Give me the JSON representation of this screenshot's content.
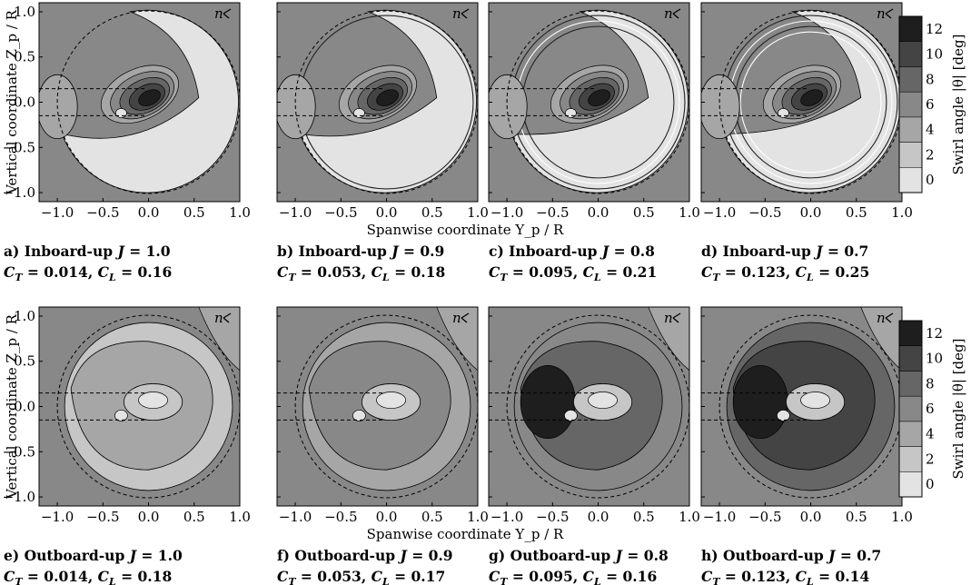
{
  "chart_data": {
    "type": "heatmap",
    "xlabel": "Spanwise coordinate Y_p / R",
    "ylabel": "Vertical coordinate Z_p / R",
    "xticks": [
      "−1.0",
      "−0.5",
      "0.0",
      "0.5",
      "1.0"
    ],
    "yticks": [
      "1.0",
      "0.5",
      "0.0",
      "−0.5",
      "−1.0"
    ],
    "xlim": [
      -1.2,
      1.0
    ],
    "ylim": [
      -1.1,
      1.1
    ],
    "corner_label": "n",
    "colorbar": {
      "label": "Swirl angle |θ| [deg]",
      "ticks": [
        "12",
        "10",
        "8",
        "6",
        "4",
        "2",
        "0"
      ],
      "levels": [
        0,
        2,
        4,
        6,
        8,
        10,
        12
      ],
      "colors": [
        "#e3e3e3",
        "#c6c6c6",
        "#a6a6a6",
        "#888888",
        "#666666",
        "#444444",
        "#1e1e1e"
      ]
    },
    "panels": [
      {
        "id": "a",
        "config": "Inboard-up",
        "J": "1.0",
        "CT": "0.014",
        "CL": "0.16",
        "background_level": 6
      },
      {
        "id": "b",
        "config": "Inboard-up",
        "J": "0.9",
        "CT": "0.053",
        "CL": "0.18",
        "background_level": 6
      },
      {
        "id": "c",
        "config": "Inboard-up",
        "J": "0.8",
        "CT": "0.095",
        "CL": "0.21",
        "background_level": 6
      },
      {
        "id": "d",
        "config": "Inboard-up",
        "J": "0.7",
        "CT": "0.123",
        "CL": "0.25",
        "background_level": 6
      },
      {
        "id": "e",
        "config": "Outboard-up",
        "J": "1.0",
        "CT": "0.014",
        "CL": "0.18",
        "background_level": 6
      },
      {
        "id": "f",
        "config": "Outboard-up",
        "J": "0.9",
        "CT": "0.053",
        "CL": "0.17",
        "background_level": 6
      },
      {
        "id": "g",
        "config": "Outboard-up",
        "J": "0.8",
        "CT": "0.095",
        "CL": "0.16",
        "background_level": 6
      },
      {
        "id": "h",
        "config": "Outboard-up",
        "J": "0.7",
        "CT": "0.123",
        "CL": "0.14",
        "background_level": 6
      }
    ]
  }
}
